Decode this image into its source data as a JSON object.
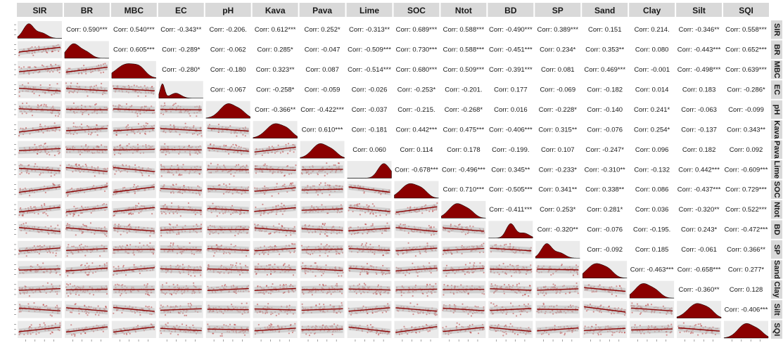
{
  "chart_data": {
    "type": "scatter-matrix",
    "title": "",
    "variables": [
      "SIR",
      "BR",
      "MBC",
      "EC",
      "pH",
      "Kava",
      "Pava",
      "Lime",
      "SOC",
      "Ntot",
      "BD",
      "SP",
      "Sand",
      "Clay",
      "Silt",
      "SQI"
    ],
    "correlations": [
      {
        "row": "SIR",
        "col": "BR",
        "text": "Corr: 0.590***"
      },
      {
        "row": "SIR",
        "col": "MBC",
        "text": "Corr: 0.540***"
      },
      {
        "row": "SIR",
        "col": "EC",
        "text": "Corr: -0.343**"
      },
      {
        "row": "SIR",
        "col": "pH",
        "text": "Corr: -0.206."
      },
      {
        "row": "SIR",
        "col": "Kava",
        "text": "Corr: 0.612***"
      },
      {
        "row": "SIR",
        "col": "Pava",
        "text": "Corr: 0.252*"
      },
      {
        "row": "SIR",
        "col": "Lime",
        "text": "Corr: -0.313**"
      },
      {
        "row": "SIR",
        "col": "SOC",
        "text": "Corr: 0.689***"
      },
      {
        "row": "SIR",
        "col": "Ntot",
        "text": "Corr: 0.588***"
      },
      {
        "row": "SIR",
        "col": "BD",
        "text": "Corr: -0.490***"
      },
      {
        "row": "SIR",
        "col": "SP",
        "text": "Corr: 0.389***"
      },
      {
        "row": "SIR",
        "col": "Sand",
        "text": "Corr: 0.151"
      },
      {
        "row": "SIR",
        "col": "Clay",
        "text": "Corr: 0.214."
      },
      {
        "row": "SIR",
        "col": "Silt",
        "text": "Corr: -0.346**"
      },
      {
        "row": "SIR",
        "col": "SQI",
        "text": "Corr: 0.558***"
      },
      {
        "row": "BR",
        "col": "MBC",
        "text": "Corr: 0.605***"
      },
      {
        "row": "BR",
        "col": "EC",
        "text": "Corr: -0.289*"
      },
      {
        "row": "BR",
        "col": "pH",
        "text": "Corr: -0.062"
      },
      {
        "row": "BR",
        "col": "Kava",
        "text": "Corr: 0.285*"
      },
      {
        "row": "BR",
        "col": "Pava",
        "text": "Corr: -0.047"
      },
      {
        "row": "BR",
        "col": "Lime",
        "text": "Corr: -0.509***"
      },
      {
        "row": "BR",
        "col": "SOC",
        "text": "Corr: 0.730***"
      },
      {
        "row": "BR",
        "col": "Ntot",
        "text": "Corr: 0.588***"
      },
      {
        "row": "BR",
        "col": "BD",
        "text": "Corr: -0.451***"
      },
      {
        "row": "BR",
        "col": "SP",
        "text": "Corr: 0.234*"
      },
      {
        "row": "BR",
        "col": "Sand",
        "text": "Corr: 0.353**"
      },
      {
        "row": "BR",
        "col": "Clay",
        "text": "Corr: 0.080"
      },
      {
        "row": "BR",
        "col": "Silt",
        "text": "Corr: -0.443***"
      },
      {
        "row": "BR",
        "col": "SQI",
        "text": "Corr: 0.652***"
      },
      {
        "row": "MBC",
        "col": "EC",
        "text": "Corr: -0.280*"
      },
      {
        "row": "MBC",
        "col": "pH",
        "text": "Corr: -0.180"
      },
      {
        "row": "MBC",
        "col": "Kava",
        "text": "Corr: 0.323**"
      },
      {
        "row": "MBC",
        "col": "Pava",
        "text": "Corr: 0.087"
      },
      {
        "row": "MBC",
        "col": "Lime",
        "text": "Corr: -0.514***"
      },
      {
        "row": "MBC",
        "col": "SOC",
        "text": "Corr: 0.680***"
      },
      {
        "row": "MBC",
        "col": "Ntot",
        "text": "Corr: 0.509***"
      },
      {
        "row": "MBC",
        "col": "BD",
        "text": "Corr: -0.391***"
      },
      {
        "row": "MBC",
        "col": "SP",
        "text": "Corr: 0.081"
      },
      {
        "row": "MBC",
        "col": "Sand",
        "text": "Corr: 0.469***"
      },
      {
        "row": "MBC",
        "col": "Clay",
        "text": "Corr: -0.001"
      },
      {
        "row": "MBC",
        "col": "Silt",
        "text": "Corr: -0.498***"
      },
      {
        "row": "MBC",
        "col": "SQI",
        "text": "Corr: 0.639***"
      },
      {
        "row": "EC",
        "col": "pH",
        "text": "Corr: -0.067"
      },
      {
        "row": "EC",
        "col": "Kava",
        "text": "Corr: -0.258*"
      },
      {
        "row": "EC",
        "col": "Pava",
        "text": "Corr: -0.059"
      },
      {
        "row": "EC",
        "col": "Lime",
        "text": "Corr: -0.026"
      },
      {
        "row": "EC",
        "col": "SOC",
        "text": "Corr: -0.253*"
      },
      {
        "row": "EC",
        "col": "Ntot",
        "text": "Corr: -0.201."
      },
      {
        "row": "EC",
        "col": "BD",
        "text": "Corr: 0.177"
      },
      {
        "row": "EC",
        "col": "SP",
        "text": "Corr: -0.069"
      },
      {
        "row": "EC",
        "col": "Sand",
        "text": "Corr: -0.182"
      },
      {
        "row": "EC",
        "col": "Clay",
        "text": "Corr: 0.014"
      },
      {
        "row": "EC",
        "col": "Silt",
        "text": "Corr: 0.183"
      },
      {
        "row": "EC",
        "col": "SQI",
        "text": "Corr: -0.286*"
      },
      {
        "row": "pH",
        "col": "Kava",
        "text": "Corr: -0.366**"
      },
      {
        "row": "pH",
        "col": "Pava",
        "text": "Corr: -0.422***"
      },
      {
        "row": "pH",
        "col": "Lime",
        "text": "Corr: -0.037"
      },
      {
        "row": "pH",
        "col": "SOC",
        "text": "Corr: -0.215."
      },
      {
        "row": "pH",
        "col": "Ntot",
        "text": "Corr: -0.268*"
      },
      {
        "row": "pH",
        "col": "BD",
        "text": "Corr: 0.016"
      },
      {
        "row": "pH",
        "col": "SP",
        "text": "Corr: -0.228*"
      },
      {
        "row": "pH",
        "col": "Sand",
        "text": "Corr: -0.140"
      },
      {
        "row": "pH",
        "col": "Clay",
        "text": "Corr: 0.241*"
      },
      {
        "row": "pH",
        "col": "Silt",
        "text": "Corr: -0.063"
      },
      {
        "row": "pH",
        "col": "SQI",
        "text": "Corr: -0.099"
      },
      {
        "row": "Kava",
        "col": "Pava",
        "text": "Corr: 0.610***"
      },
      {
        "row": "Kava",
        "col": "Lime",
        "text": "Corr: -0.181"
      },
      {
        "row": "Kava",
        "col": "SOC",
        "text": "Corr: 0.442***"
      },
      {
        "row": "Kava",
        "col": "Ntot",
        "text": "Corr: 0.475***"
      },
      {
        "row": "Kava",
        "col": "BD",
        "text": "Corr: -0.406***"
      },
      {
        "row": "Kava",
        "col": "SP",
        "text": "Corr: 0.315**"
      },
      {
        "row": "Kava",
        "col": "Sand",
        "text": "Corr: -0.076"
      },
      {
        "row": "Kava",
        "col": "Clay",
        "text": "Corr: 0.254*"
      },
      {
        "row": "Kava",
        "col": "Silt",
        "text": "Corr: -0.137"
      },
      {
        "row": "Kava",
        "col": "SQI",
        "text": "Corr: 0.343**"
      },
      {
        "row": "Pava",
        "col": "Lime",
        "text": "Corr: 0.060"
      },
      {
        "row": "Pava",
        "col": "SOC",
        "text": "Corr: 0.114"
      },
      {
        "row": "Pava",
        "col": "Ntot",
        "text": "Corr: 0.178"
      },
      {
        "row": "Pava",
        "col": "BD",
        "text": "Corr: -0.199."
      },
      {
        "row": "Pava",
        "col": "SP",
        "text": "Corr: 0.107"
      },
      {
        "row": "Pava",
        "col": "Sand",
        "text": "Corr: -0.247*"
      },
      {
        "row": "Pava",
        "col": "Clay",
        "text": "Corr: 0.096"
      },
      {
        "row": "Pava",
        "col": "Silt",
        "text": "Corr: 0.182"
      },
      {
        "row": "Pava",
        "col": "SQI",
        "text": "Corr: 0.092"
      },
      {
        "row": "Lime",
        "col": "SOC",
        "text": "Corr: -0.678***"
      },
      {
        "row": "Lime",
        "col": "Ntot",
        "text": "Corr: -0.496***"
      },
      {
        "row": "Lime",
        "col": "BD",
        "text": "Corr: 0.345**"
      },
      {
        "row": "Lime",
        "col": "SP",
        "text": "Corr: -0.233*"
      },
      {
        "row": "Lime",
        "col": "Sand",
        "text": "Corr: -0.310**"
      },
      {
        "row": "Lime",
        "col": "Clay",
        "text": "Corr: -0.132"
      },
      {
        "row": "Lime",
        "col": "Silt",
        "text": "Corr: 0.442***"
      },
      {
        "row": "Lime",
        "col": "SQI",
        "text": "Corr: -0.609***"
      },
      {
        "row": "SOC",
        "col": "Ntot",
        "text": "Corr: 0.710***"
      },
      {
        "row": "SOC",
        "col": "BD",
        "text": "Corr: -0.505***"
      },
      {
        "row": "SOC",
        "col": "SP",
        "text": "Corr: 0.341**"
      },
      {
        "row": "SOC",
        "col": "Sand",
        "text": "Corr: 0.338**"
      },
      {
        "row": "SOC",
        "col": "Clay",
        "text": "Corr: 0.086"
      },
      {
        "row": "SOC",
        "col": "Silt",
        "text": "Corr: -0.437***"
      },
      {
        "row": "SOC",
        "col": "SQI",
        "text": "Corr: 0.729***"
      },
      {
        "row": "Ntot",
        "col": "BD",
        "text": "Corr: -0.411***"
      },
      {
        "row": "Ntot",
        "col": "SP",
        "text": "Corr: 0.253*"
      },
      {
        "row": "Ntot",
        "col": "Sand",
        "text": "Corr: 0.281*"
      },
      {
        "row": "Ntot",
        "col": "Clay",
        "text": "Corr: 0.036"
      },
      {
        "row": "Ntot",
        "col": "Silt",
        "text": "Corr: -0.320**"
      },
      {
        "row": "Ntot",
        "col": "SQI",
        "text": "Corr: 0.522***"
      },
      {
        "row": "BD",
        "col": "SP",
        "text": "Corr: -0.320**"
      },
      {
        "row": "BD",
        "col": "Sand",
        "text": "Corr: -0.076"
      },
      {
        "row": "BD",
        "col": "Clay",
        "text": "Corr: -0.195."
      },
      {
        "row": "BD",
        "col": "Silt",
        "text": "Corr: 0.243*"
      },
      {
        "row": "BD",
        "col": "SQI",
        "text": "Corr: -0.472***"
      },
      {
        "row": "SP",
        "col": "Sand",
        "text": "Corr: -0.092"
      },
      {
        "row": "SP",
        "col": "Clay",
        "text": "Corr: 0.185"
      },
      {
        "row": "SP",
        "col": "Silt",
        "text": "Corr: -0.061"
      },
      {
        "row": "SP",
        "col": "SQI",
        "text": "Corr: 0.366**"
      },
      {
        "row": "Sand",
        "col": "Clay",
        "text": "Corr: -0.463***"
      },
      {
        "row": "Sand",
        "col": "Silt",
        "text": "Corr: -0.658***"
      },
      {
        "row": "Sand",
        "col": "SQI",
        "text": "Corr: 0.277*"
      },
      {
        "row": "Clay",
        "col": "Silt",
        "text": "Corr: -0.360**"
      },
      {
        "row": "Clay",
        "col": "SQI",
        "text": "Corr: 0.128"
      },
      {
        "row": "Silt",
        "col": "SQI",
        "text": "Corr: -0.406***"
      }
    ],
    "colors": {
      "strip_bg": "#d9d9d9",
      "panel_bg": "#ebebeb",
      "point": "#b22222",
      "line": "#8b0000",
      "density_fill": "#8b0000",
      "band": "#bdbdbd"
    }
  }
}
